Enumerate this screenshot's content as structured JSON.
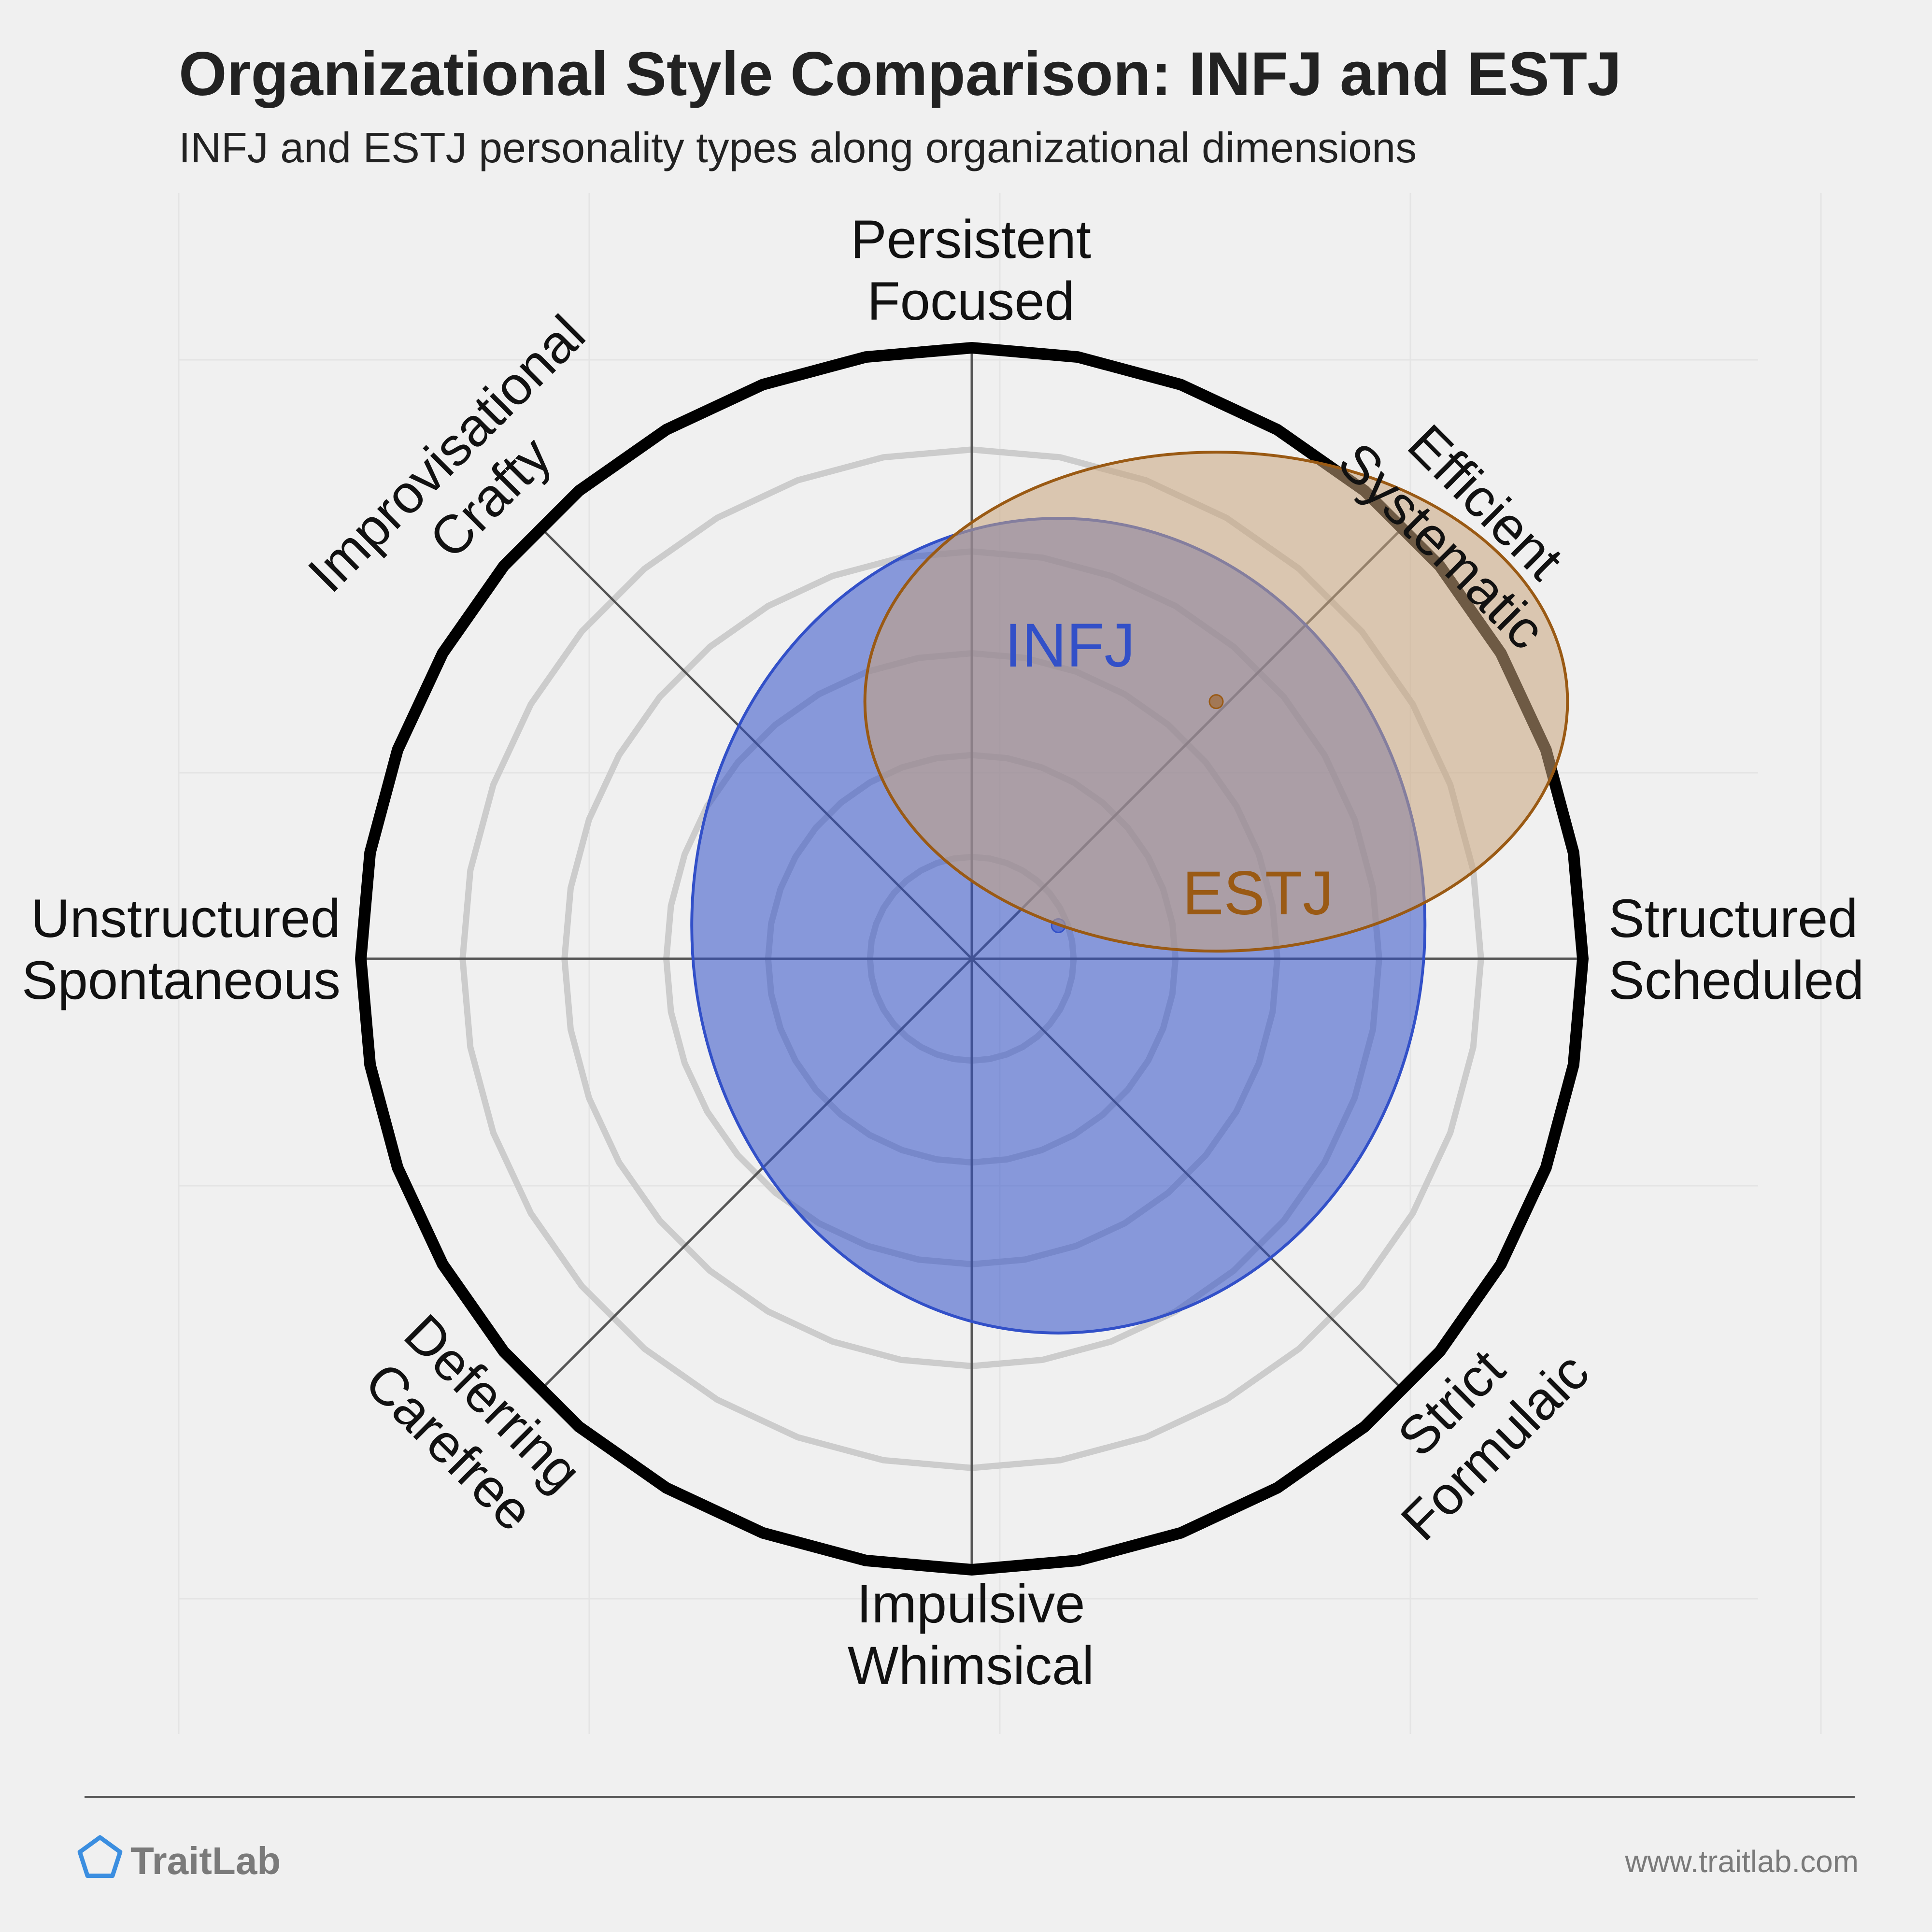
{
  "chart_data": {
    "type": "radar-ellipse",
    "title": "Organizational Style Comparison: INFJ and ESTJ",
    "subtitle": "INFJ and ESTJ personality types along organizational dimensions",
    "axes": [
      {
        "lines": [
          "Structured",
          "Scheduled"
        ]
      },
      {
        "lines": [
          "Efficient",
          "Systematic"
        ]
      },
      {
        "lines": [
          "Persistent",
          "Focused"
        ]
      },
      {
        "lines": [
          "Improvisational",
          "Crafty"
        ]
      },
      {
        "lines": [
          "Unstructured",
          "Spontaneous"
        ]
      },
      {
        "lines": [
          "Deferring",
          "Carefree"
        ]
      },
      {
        "lines": [
          "Impulsive",
          "Whimsical"
        ]
      },
      {
        "lines": [
          "Strict",
          "Formulaic"
        ]
      }
    ],
    "grid": true,
    "series": [
      {
        "name": "INFJ",
        "color": "#3250c8",
        "fill": "#3250c8",
        "center": [
          17,
          6.5
        ],
        "radius": [
          72,
          80
        ]
      },
      {
        "name": "ESTJ",
        "color": "#9a5a14",
        "fill": "#c8a47c",
        "center": [
          48,
          50.5
        ],
        "radius": [
          69,
          49
        ]
      }
    ]
  },
  "branding": {
    "logo_text": "TraitLab",
    "url": "www.traitlab.com",
    "logo_color": "#3b8ee0"
  }
}
